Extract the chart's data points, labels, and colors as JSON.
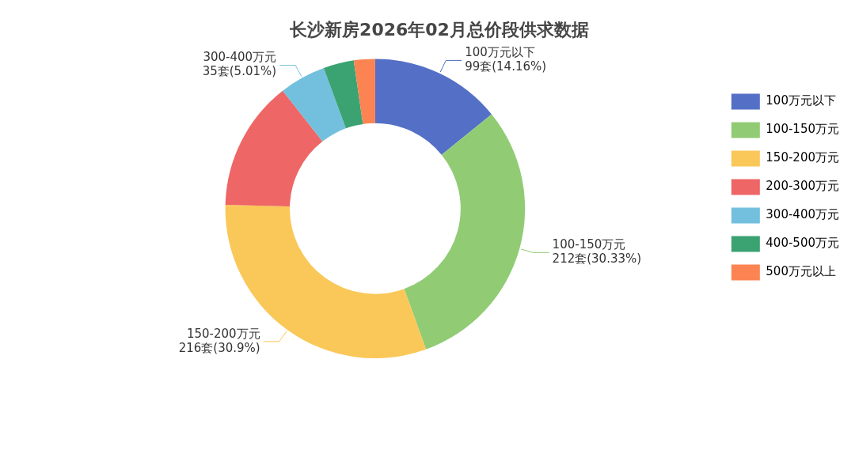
{
  "chart_data": {
    "type": "donut",
    "title": "长沙新房2026年02月总价段供求数据",
    "categories": [
      "100万元以下",
      "100-150万元",
      "150-200万元",
      "200-300万元",
      "300-400万元",
      "400-500万元",
      "500万元以上"
    ],
    "values": [
      99,
      212,
      216,
      98,
      35,
      23,
      16
    ],
    "colors": [
      "#5470c6",
      "#91cc75",
      "#fac858",
      "#ee6666",
      "#73c0de",
      "#3ba272",
      "#fc8452"
    ],
    "value_labels": [
      "100万元以下\n99套(14.16%)",
      "100-150万元\n212套(30.33%)",
      "150-200万元\n216套(30.9%)",
      null,
      "300-400万元\n35套(5.01%)",
      null,
      null
    ],
    "legend": "right"
  }
}
